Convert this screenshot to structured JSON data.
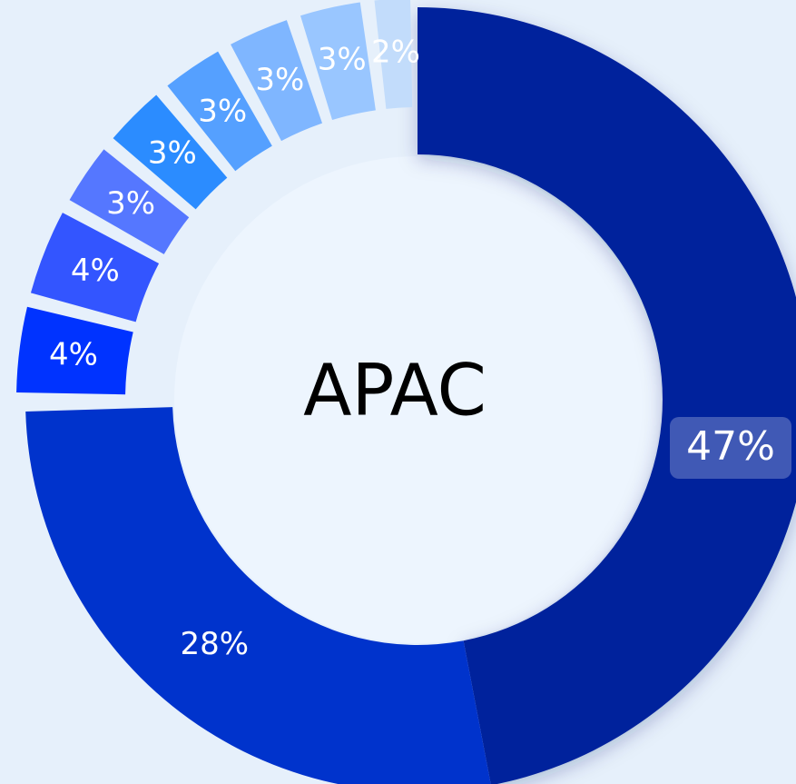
{
  "chart_data": {
    "type": "donut",
    "center_label": "APAC",
    "values": [
      47,
      28,
      4,
      4,
      3,
      3,
      3,
      3,
      3,
      2
    ],
    "value_labels": [
      "47%",
      "28%",
      "4%",
      "4%",
      "3%",
      "3%",
      "3%",
      "3%",
      "3%",
      "2%"
    ],
    "colors": [
      "#00239c",
      "#0033cc",
      "#0033ff",
      "#3355ff",
      "#5577ff",
      "#2b8cff",
      "#55a0ff",
      "#7fb6ff",
      "#99c6ff",
      "#c2dcfb"
    ]
  }
}
